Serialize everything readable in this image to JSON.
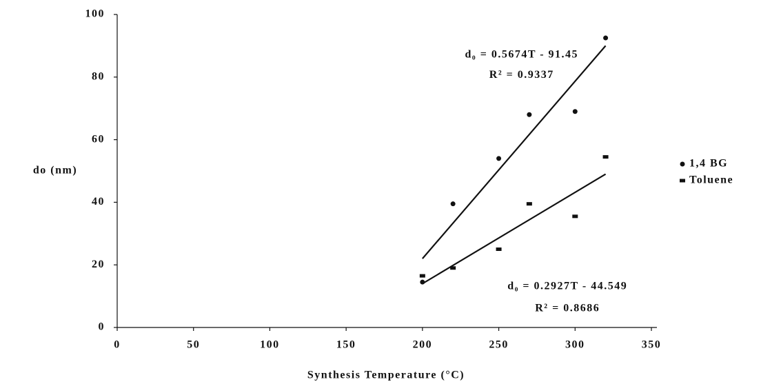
{
  "chart_data": {
    "type": "scatter",
    "x_label": "Synthesis Temperature (°C)",
    "y_label": "do (nm)",
    "xlim": [
      0,
      350
    ],
    "xticks": [
      0,
      50,
      100,
      150,
      200,
      250,
      300,
      350
    ],
    "ylim": [
      0,
      100
    ],
    "yticks": [
      0,
      20,
      40,
      60,
      80,
      100
    ],
    "legend": "right",
    "series": [
      {
        "name": "1,4 BG",
        "color": "#111111",
        "marker": "circle",
        "x": [
          200,
          220,
          250,
          270,
          300,
          320
        ],
        "values": [
          14.5,
          39.5,
          54,
          68,
          69,
          92.5
        ],
        "trend_x": [
          200,
          320
        ],
        "trend_values": [
          22,
          90
        ]
      },
      {
        "name": "Toluene",
        "color": "#111111",
        "marker": "square",
        "x": [
          200,
          220,
          250,
          270,
          300,
          320
        ],
        "values": [
          16.5,
          19,
          25,
          39.5,
          35.5,
          54.5
        ],
        "trend_x": [
          200,
          320
        ],
        "trend_values": [
          14,
          49
        ]
      }
    ],
    "annotations": [
      {
        "text": "d₀ = 0.5674T - 91.45",
        "x": 265,
        "y": 87
      },
      {
        "text": "R² = 0.9337",
        "x": 265,
        "y": 80.5
      },
      {
        "text": "d₀ = 0.2927T - 44.549",
        "x": 295,
        "y": 13
      },
      {
        "text": "R² = 0.8686",
        "x": 295,
        "y": 6
      }
    ]
  }
}
